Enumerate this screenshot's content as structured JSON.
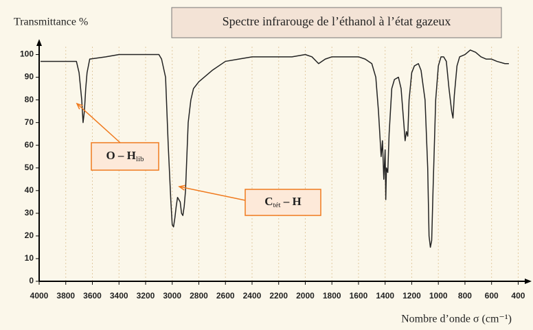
{
  "chart_data": {
    "type": "line",
    "title": "Spectre infrarouge de l’éthanol à l’état gazeux",
    "y_label": "Transmittance %",
    "x_label": "Nombre d’onde σ (cm⁻¹)",
    "color": "#222222",
    "grid": true,
    "xlim": [
      4000,
      330
    ],
    "ylim": [
      0,
      105
    ],
    "xticks": [
      4000,
      3800,
      3600,
      3400,
      3200,
      3000,
      2800,
      2600,
      2400,
      2200,
      2000,
      1800,
      1600,
      1400,
      1200,
      1000,
      800,
      600,
      400
    ],
    "yticks": [
      0,
      10,
      20,
      30,
      40,
      50,
      60,
      70,
      80,
      90,
      100
    ],
    "annotations": [
      {
        "text": "O – H",
        "sub": "lib"
      },
      {
        "text": "C",
        "sub": "tét",
        "tail": " – H"
      }
    ],
    "x": [
      3990,
      3900,
      3800,
      3720,
      3700,
      3680,
      3670,
      3660,
      3650,
      3640,
      3620,
      3500,
      3400,
      3200,
      3100,
      3080,
      3050,
      3030,
      3010,
      3000,
      2990,
      2980,
      2970,
      2960,
      2950,
      2940,
      2930,
      2920,
      2910,
      2900,
      2890,
      2880,
      2860,
      2840,
      2800,
      2700,
      2600,
      2500,
      2400,
      2200,
      2100,
      2000,
      1950,
      1900,
      1850,
      1800,
      1700,
      1600,
      1550,
      1500,
      1470,
      1450,
      1430,
      1420,
      1410,
      1400,
      1395,
      1390,
      1380,
      1370,
      1350,
      1330,
      1300,
      1280,
      1260,
      1250,
      1240,
      1230,
      1220,
      1200,
      1180,
      1150,
      1130,
      1100,
      1080,
      1070,
      1060,
      1050,
      1040,
      1020,
      1000,
      980,
      960,
      940,
      920,
      900,
      890,
      880,
      860,
      840,
      800,
      760,
      720,
      680,
      640,
      600,
      560,
      500,
      470
    ],
    "values": [
      97,
      97,
      97,
      97,
      92,
      80,
      70,
      75,
      85,
      92,
      98,
      99,
      100,
      100,
      100,
      98,
      90,
      60,
      35,
      25,
      24,
      28,
      33,
      37,
      36,
      35,
      30,
      29,
      33,
      40,
      55,
      70,
      80,
      85,
      88,
      93,
      97,
      98,
      99,
      99,
      99,
      100,
      99,
      96,
      98,
      99,
      99,
      99,
      98,
      96,
      90,
      75,
      55,
      62,
      45,
      58,
      36,
      50,
      48,
      65,
      85,
      89,
      90,
      85,
      70,
      62,
      66,
      64,
      80,
      92,
      95,
      96,
      93,
      80,
      50,
      20,
      15,
      18,
      40,
      80,
      95,
      99,
      99,
      97,
      85,
      75,
      72,
      82,
      95,
      99,
      100,
      102,
      101,
      99,
      98,
      98,
      97,
      96,
      96
    ]
  }
}
